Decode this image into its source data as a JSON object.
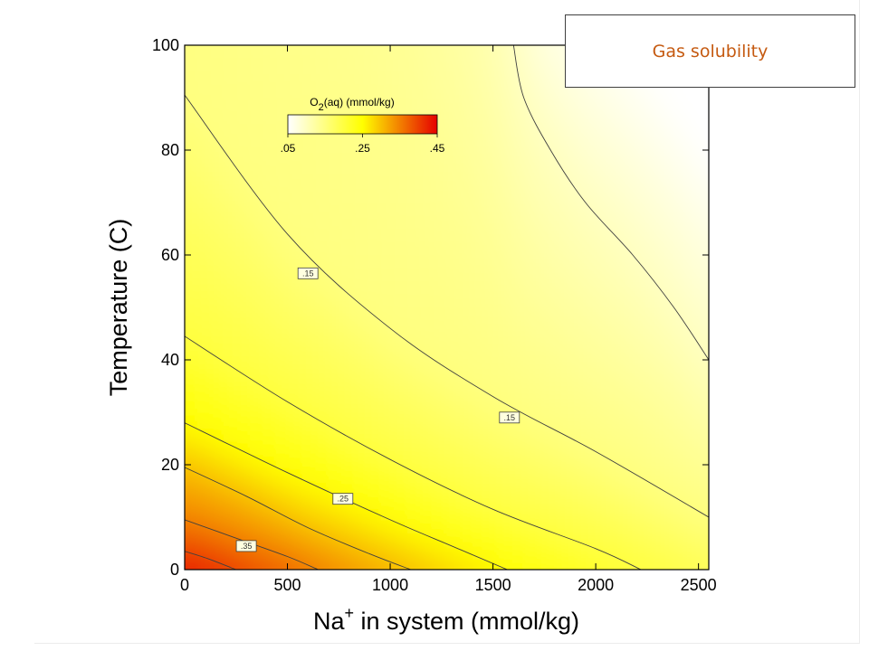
{
  "slide": {
    "title": "Gas solubility"
  },
  "colors": {
    "low": "#ffffff",
    "mid": "#ffff00",
    "high": "#e60000",
    "contour": "#404040",
    "title": "#c55a11"
  },
  "chart_data": {
    "type": "heatmap",
    "title": "",
    "xlabel_main": "Na",
    "xlabel_sup": "+",
    "xlabel_rest": " in system (mmol/kg)",
    "ylabel": "Temperature (C)",
    "xlim": [
      0,
      2550
    ],
    "ylim": [
      0,
      100
    ],
    "xticks": [
      "0",
      "500",
      "1000",
      "1500",
      "2000",
      "2500"
    ],
    "xtick_values": [
      0,
      500,
      1000,
      1500,
      2000,
      2500
    ],
    "yticks": [
      "0",
      "20",
      "40",
      "60",
      "80",
      "100"
    ],
    "ytick_values": [
      0,
      20,
      40,
      60,
      80,
      100
    ],
    "variable": "O2(aq) (mmol/kg)",
    "colorbar": {
      "label_main": "O",
      "label_sub": "2",
      "label_rest": "(aq) (mmol/kg)",
      "range": [
        0.05,
        0.45
      ],
      "ticks": [
        ".05",
        ".25",
        ".45"
      ],
      "tick_values": [
        0.05,
        0.25,
        0.45
      ]
    },
    "contours": [
      {
        "level": 0.1,
        "points": [
          [
            1600,
            100
          ],
          [
            1650,
            90
          ],
          [
            1780,
            80
          ],
          [
            1950,
            70
          ],
          [
            2180,
            60
          ],
          [
            2380,
            50
          ],
          [
            2550,
            40
          ]
        ]
      },
      {
        "level": 0.15,
        "points": [
          [
            0,
            90.5
          ],
          [
            500,
            64
          ],
          [
            1000,
            46
          ],
          [
            1500,
            33
          ],
          [
            2000,
            22.5
          ],
          [
            2550,
            10
          ]
        ]
      },
      {
        "level": 0.2,
        "points": [
          [
            0,
            44.5
          ],
          [
            500,
            32
          ],
          [
            1000,
            21
          ],
          [
            1500,
            11.5
          ],
          [
            2000,
            4
          ],
          [
            2220,
            0
          ]
        ]
      },
      {
        "level": 0.25,
        "points": [
          [
            0,
            28
          ],
          [
            500,
            18.5
          ],
          [
            1000,
            9.5
          ],
          [
            1300,
            4.5
          ],
          [
            1570,
            0
          ]
        ]
      },
      {
        "level": 0.3,
        "points": [
          [
            0,
            19.5
          ],
          [
            300,
            14
          ],
          [
            600,
            8
          ],
          [
            900,
            3
          ],
          [
            1100,
            0
          ]
        ]
      },
      {
        "level": 0.35,
        "points": [
          [
            0,
            9.5
          ],
          [
            250,
            6
          ],
          [
            500,
            2.5
          ],
          [
            650,
            0
          ]
        ]
      },
      {
        "level": 0.4,
        "points": [
          [
            0,
            3.5
          ],
          [
            120,
            2
          ],
          [
            250,
            0
          ]
        ]
      }
    ],
    "contour_labels": [
      {
        "text": ".15",
        "x": 600,
        "y": 56.5
      },
      {
        "text": ".15",
        "x": 1580,
        "y": 29
      },
      {
        "text": ".25",
        "x": 770,
        "y": 13.5
      },
      {
        "text": ".35",
        "x": 300,
        "y": 4.5
      }
    ]
  }
}
